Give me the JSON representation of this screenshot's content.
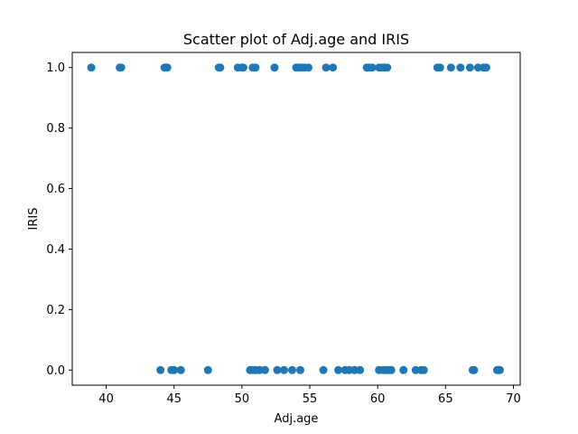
{
  "chart_data": {
    "type": "scatter",
    "title": "Scatter plot of Adj.age and IRIS",
    "xlabel": "Adj.age",
    "ylabel": "IRIS",
    "xlim": [
      37.5,
      70.5
    ],
    "ylim": [
      -0.05,
      1.05
    ],
    "x_ticks": [
      40,
      45,
      50,
      55,
      60,
      65,
      70
    ],
    "y_ticks": [
      0.0,
      0.2,
      0.4,
      0.6,
      0.8,
      1.0
    ],
    "grid": false,
    "color": "#1f77b4",
    "series": [
      {
        "x": [
          38.9,
          41.0,
          41.1,
          44.3,
          44.4,
          44.5,
          48.3,
          48.4,
          49.7,
          50.0,
          50.1,
          50.8,
          51.0,
          52.4,
          54.0,
          54.2,
          54.4,
          54.6,
          54.9,
          56.2,
          56.7,
          59.2,
          59.4,
          59.6,
          60.1,
          60.3,
          60.5,
          60.7,
          64.4,
          64.6,
          65.4,
          66.1,
          66.8,
          67.4,
          67.8,
          68.0
        ],
        "y": [
          1,
          1,
          1,
          1,
          1,
          1,
          1,
          1,
          1,
          1,
          1,
          1,
          1,
          1,
          1,
          1,
          1,
          1,
          1,
          1,
          1,
          1,
          1,
          1,
          1,
          1,
          1,
          1,
          1,
          1,
          1,
          1,
          1,
          1,
          1,
          1
        ]
      },
      {
        "x": [
          44.0,
          44.8,
          45.0,
          45.5,
          47.5,
          50.6,
          50.8,
          51.0,
          51.3,
          51.7,
          52.6,
          53.1,
          53.7,
          54.3,
          56.0,
          57.1,
          57.6,
          57.9,
          58.3,
          58.7,
          60.1,
          60.4,
          60.6,
          60.8,
          61.0,
          61.9,
          62.8,
          63.2,
          63.4,
          67.0,
          67.1,
          68.8,
          68.9,
          69.0
        ],
        "y": [
          0,
          0,
          0,
          0,
          0,
          0,
          0,
          0,
          0,
          0,
          0,
          0,
          0,
          0,
          0,
          0,
          0,
          0,
          0,
          0,
          0,
          0,
          0,
          0,
          0,
          0,
          0,
          0,
          0,
          0,
          0,
          0,
          0,
          0
        ]
      }
    ]
  }
}
